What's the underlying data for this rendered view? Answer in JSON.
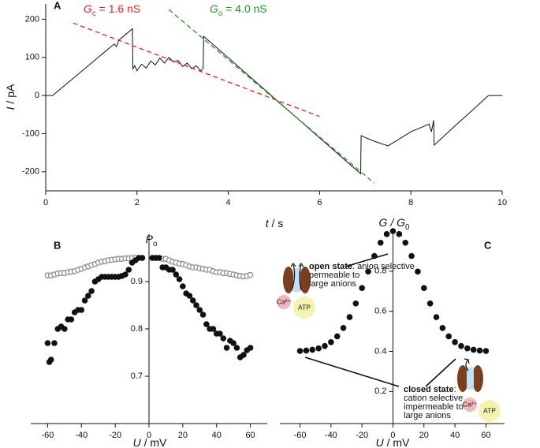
{
  "chart_data": [
    {
      "type": "line",
      "panel_label": "A",
      "x_label": {
        "main": "t",
        "rest": " / s"
      },
      "y_label": {
        "main": "I",
        "rest": " / pA"
      },
      "xlim": [
        0,
        10
      ],
      "ylim": [
        -250,
        240
      ],
      "xticks": [
        0,
        2,
        4,
        6,
        8,
        10
      ],
      "yticks": [
        -200,
        -100,
        0,
        100,
        200
      ],
      "series": [
        {
          "color": "#111111",
          "dashed": false,
          "x": [
            0,
            0.15,
            1.0,
            1.5,
            1.55,
            1.6,
            1.9,
            1.91,
            1.95,
            2.0,
            2.1,
            2.2,
            2.3,
            2.4,
            2.5,
            2.6,
            2.7,
            2.8,
            2.9,
            3.0,
            3.1,
            3.2,
            3.3,
            3.4,
            3.45,
            3.46,
            4,
            5,
            6,
            6.9,
            6.91,
            7.0,
            7.2,
            7.5,
            7.8,
            8.0,
            8.3,
            8.4,
            8.45,
            8.5,
            8.51,
            9,
            9.5,
            9.7,
            10
          ],
          "values": [
            0,
            0,
            85,
            135,
            128,
            145,
            175,
            70,
            78,
            65,
            82,
            72,
            90,
            80,
            98,
            85,
            100,
            88,
            92,
            76,
            85,
            70,
            78,
            64,
            72,
            155,
            99,
            -6,
            -111,
            -205,
            -105,
            -110,
            -120,
            -132,
            -110,
            -95,
            -80,
            -75,
            -95,
            -65,
            -130,
            -76,
            -22,
            0,
            0
          ]
        },
        {
          "color": "#e8201c",
          "dashed": true,
          "x": [
            0.6,
            6
          ],
          "values": [
            190,
            -55
          ]
        },
        {
          "color": "#1a9a1a",
          "dashed": true,
          "x": [
            2.7,
            7.2
          ],
          "values": [
            225,
            -230
          ]
        }
      ],
      "annotations": [
        {
          "main": "G",
          "sub": "c",
          "rest": " = 1.6 nS",
          "color": "#e8201c"
        },
        {
          "main": "G",
          "sub": "o",
          "rest": " = 4.0 nS",
          "color": "#1a9a1a"
        }
      ]
    },
    {
      "type": "scatter",
      "panel_label": "B",
      "x_label": {
        "main": "U",
        "rest": " / mV"
      },
      "y_label": {
        "main": "P",
        "sub": "o"
      },
      "xlim": [
        -70,
        70
      ],
      "ylim": [
        0.6,
        1.0
      ],
      "xticks": [
        -60,
        -40,
        -20,
        0,
        20,
        40,
        60
      ],
      "yticks": [
        0.7,
        0.8,
        0.9
      ],
      "series": [
        {
          "color": "#888888",
          "filled": false,
          "x": [
            -60,
            -58,
            -56,
            -54,
            -52,
            -50,
            -48,
            -46,
            -44,
            -42,
            -40,
            -38,
            -36,
            -34,
            -32,
            -30,
            -28,
            -26,
            -24,
            -22,
            -20,
            -18,
            -16,
            -14,
            -12,
            -10,
            -8,
            -6,
            -4,
            2,
            4,
            6,
            8,
            10,
            12,
            14,
            16,
            18,
            20,
            22,
            24,
            26,
            28,
            30,
            32,
            34,
            36,
            38,
            40,
            42,
            44,
            46,
            48,
            50,
            52,
            54,
            56,
            58,
            60
          ],
          "values": [
            0.913,
            0.913,
            0.915,
            0.917,
            0.918,
            0.918,
            0.92,
            0.921,
            0.922,
            0.925,
            0.927,
            0.93,
            0.932,
            0.935,
            0.937,
            0.94,
            0.942,
            0.943,
            0.945,
            0.946,
            0.947,
            0.948,
            0.948,
            0.949,
            0.949,
            0.95,
            0.95,
            0.95,
            0.95,
            0.95,
            0.95,
            0.95,
            0.948,
            0.948,
            0.945,
            0.942,
            0.94,
            0.938,
            0.937,
            0.935,
            0.932,
            0.93,
            0.93,
            0.928,
            0.927,
            0.925,
            0.925,
            0.922,
            0.92,
            0.92,
            0.918,
            0.918,
            0.916,
            0.915,
            0.913,
            0.912,
            0.911,
            0.912,
            0.914
          ]
        },
        {
          "color": "#111111",
          "filled": true,
          "x": [
            -60,
            -59,
            -58,
            -56,
            -54,
            -52,
            -50,
            -48,
            -46,
            -44,
            -42,
            -40,
            -38,
            -36,
            -34,
            -32,
            -30,
            -28,
            -26,
            -24,
            -22,
            -20,
            -18,
            -16,
            -14,
            -12,
            -10,
            -8,
            -6,
            -4,
            2,
            4,
            6,
            8,
            10,
            12,
            14,
            16,
            18,
            20,
            22,
            24,
            26,
            28,
            30,
            32,
            34,
            36,
            38,
            40,
            42,
            44,
            46,
            48,
            50,
            52,
            54,
            56,
            58,
            60
          ],
          "values": [
            0.77,
            0.73,
            0.735,
            0.77,
            0.8,
            0.805,
            0.8,
            0.82,
            0.82,
            0.835,
            0.84,
            0.84,
            0.86,
            0.87,
            0.88,
            0.9,
            0.905,
            0.91,
            0.91,
            0.91,
            0.91,
            0.91,
            0.91,
            0.912,
            0.915,
            0.925,
            0.94,
            0.945,
            0.95,
            0.95,
            0.95,
            0.95,
            0.95,
            0.93,
            0.93,
            0.925,
            0.925,
            0.915,
            0.905,
            0.89,
            0.875,
            0.87,
            0.86,
            0.85,
            0.84,
            0.83,
            0.81,
            0.8,
            0.8,
            0.79,
            0.79,
            0.78,
            0.76,
            0.775,
            0.77,
            0.76,
            0.74,
            0.745,
            0.755,
            0.76
          ]
        }
      ]
    },
    {
      "type": "scatter",
      "panel_label": "C",
      "x_label": {
        "main": "U",
        "rest": " / mV"
      },
      "y_label": {
        "main": "G / G",
        "sub": "0"
      },
      "xlim": [
        -73,
        72
      ],
      "ylim": [
        0.04,
        1.0
      ],
      "xticks": [
        -60,
        -40,
        -20,
        0,
        20,
        40,
        60
      ],
      "yticks": [
        0.2,
        0.4,
        0.6,
        0.8
      ],
      "series": [
        {
          "color": "#111111",
          "filled": true,
          "x": [
            -60,
            -56,
            -52,
            -48,
            -44,
            -40,
            -36,
            -32,
            -28,
            -24,
            -20,
            -16,
            -12,
            -8,
            -4,
            0,
            4,
            8,
            12,
            16,
            20,
            24,
            28,
            32,
            36,
            40,
            44,
            48,
            52,
            56,
            60
          ],
          "values": [
            0.402,
            0.404,
            0.408,
            0.415,
            0.427,
            0.446,
            0.475,
            0.517,
            0.571,
            0.639,
            0.716,
            0.798,
            0.876,
            0.942,
            0.985,
            1.0,
            0.985,
            0.942,
            0.876,
            0.798,
            0.716,
            0.639,
            0.571,
            0.517,
            0.475,
            0.446,
            0.427,
            0.415,
            0.408,
            0.404,
            0.402
          ]
        }
      ],
      "open_state": {
        "bold": "open state",
        "lines": [
          ": anion selective",
          "permeable to",
          "large anions"
        ]
      },
      "closed_state": {
        "bold": "closed state",
        "lines": [
          ":",
          "cation selective",
          "impermeable to",
          "large anions"
        ]
      },
      "icons": {
        "calcium": "Ca²⁺",
        "atp": "ATP"
      }
    }
  ]
}
